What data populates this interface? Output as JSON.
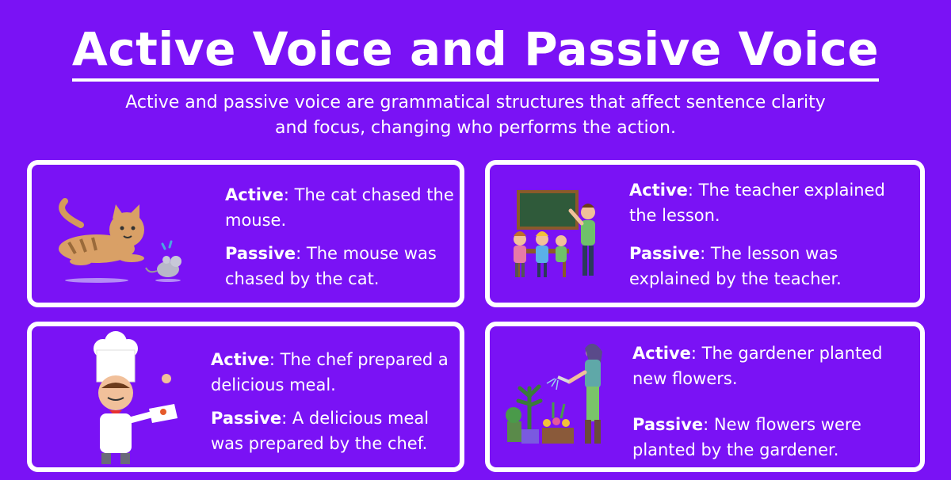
{
  "title": "Active Voice and Passive Voice",
  "subtitle": "Active and passive voice are grammatical structures that affect sentence clarity and focus, changing who performs the action.",
  "colors": {
    "background": "#7a12f5",
    "border": "#ffffff",
    "text": "#ffffff"
  },
  "cards": [
    {
      "illustration": "cat-chasing-mouse",
      "active_label": "Active",
      "active_text": ": The cat chased the mouse.",
      "passive_label": "Passive",
      "passive_text": ": The mouse was chased by the cat."
    },
    {
      "illustration": "teacher-with-students",
      "active_label": "Active",
      "active_text": ": The teacher explained the lesson.",
      "passive_label": "Passive",
      "passive_text": ": The lesson was explained by the teacher."
    },
    {
      "illustration": "chef-serving-meal",
      "active_label": "Active",
      "active_text": ": The chef prepared a delicious meal.",
      "passive_label": "Passive",
      "passive_text": ": A delicious meal was prepared by the chef."
    },
    {
      "illustration": "gardener-watering-plants",
      "active_label": "Active",
      "active_text": ": The gardener planted new flowers.",
      "passive_label": "Passive",
      "passive_text": ": New flowers were planted by the gardener."
    }
  ]
}
